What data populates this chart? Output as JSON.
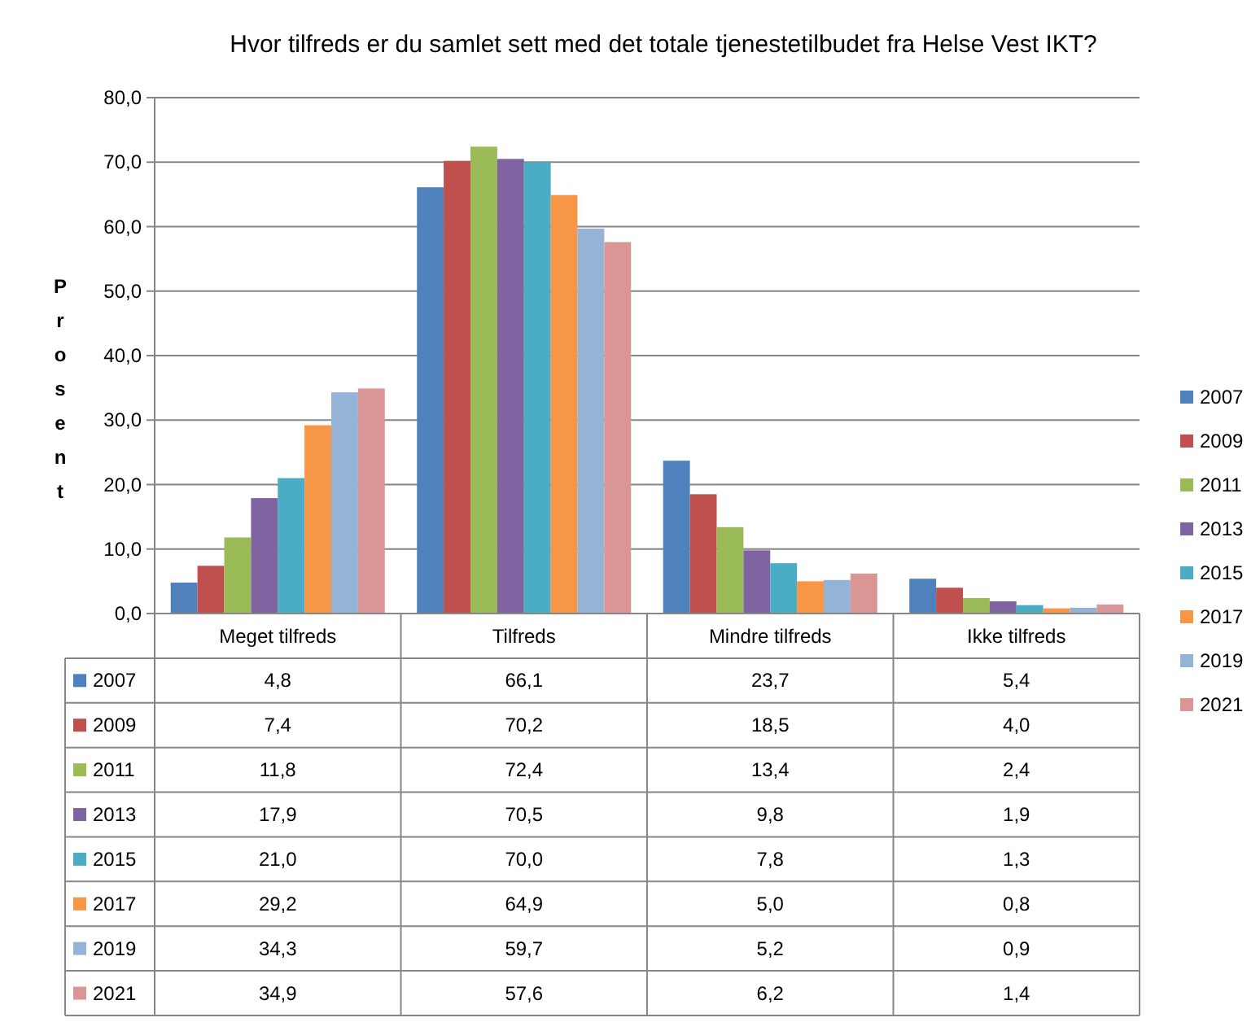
{
  "chart_data": {
    "type": "bar",
    "title": "Hvor tilfreds er du samlet sett med det totale tjenestetilbudet fra Helse Vest IKT?",
    "ylabel": "Prosent",
    "categories": [
      "Meget tilfreds",
      "Tilfreds",
      "Mindre tilfreds",
      "Ikke tilfreds"
    ],
    "series": [
      {
        "name": "2007",
        "color": "#4f81bd",
        "values": [
          4.8,
          66.1,
          23.7,
          5.4
        ],
        "value_labels": [
          "4,8",
          "66,1",
          "23,7",
          "5,4"
        ]
      },
      {
        "name": "2009",
        "color": "#c0504d",
        "values": [
          7.4,
          70.2,
          18.5,
          4.0
        ],
        "value_labels": [
          "7,4",
          "70,2",
          "18,5",
          "4,0"
        ]
      },
      {
        "name": "2011",
        "color": "#9bbb59",
        "values": [
          11.8,
          72.4,
          13.4,
          2.4
        ],
        "value_labels": [
          "11,8",
          "72,4",
          "13,4",
          "2,4"
        ]
      },
      {
        "name": "2013",
        "color": "#8064a2",
        "values": [
          17.9,
          70.5,
          9.8,
          1.9
        ],
        "value_labels": [
          "17,9",
          "70,5",
          "9,8",
          "1,9"
        ]
      },
      {
        "name": "2015",
        "color": "#4bacc6",
        "values": [
          21.0,
          70.0,
          7.8,
          1.3
        ],
        "value_labels": [
          "21,0",
          "70,0",
          "7,8",
          "1,3"
        ]
      },
      {
        "name": "2017",
        "color": "#f79646",
        "values": [
          29.2,
          64.9,
          5.0,
          0.8
        ],
        "value_labels": [
          "29,2",
          "64,9",
          "5,0",
          "0,8"
        ]
      },
      {
        "name": "2019",
        "color": "#95b3d7",
        "values": [
          34.3,
          59.7,
          5.2,
          0.9
        ],
        "value_labels": [
          "34,3",
          "59,7",
          "5,2",
          "0,9"
        ]
      },
      {
        "name": "2021",
        "color": "#d99694",
        "values": [
          34.9,
          57.6,
          6.2,
          1.4
        ],
        "value_labels": [
          "34,9",
          "57,6",
          "6,2",
          "1,4"
        ]
      }
    ],
    "ylim": [
      0,
      80
    ],
    "yticks": [
      {
        "value": 0,
        "label": "0,0"
      },
      {
        "value": 10,
        "label": "10,0"
      },
      {
        "value": 20,
        "label": "20,0"
      },
      {
        "value": 30,
        "label": "30,0"
      },
      {
        "value": 40,
        "label": "40,0"
      },
      {
        "value": 50,
        "label": "50,0"
      },
      {
        "value": 60,
        "label": "60,0"
      },
      {
        "value": 70,
        "label": "70,0"
      },
      {
        "value": 80,
        "label": "80,0"
      }
    ],
    "grid": "y",
    "legend": "right"
  }
}
